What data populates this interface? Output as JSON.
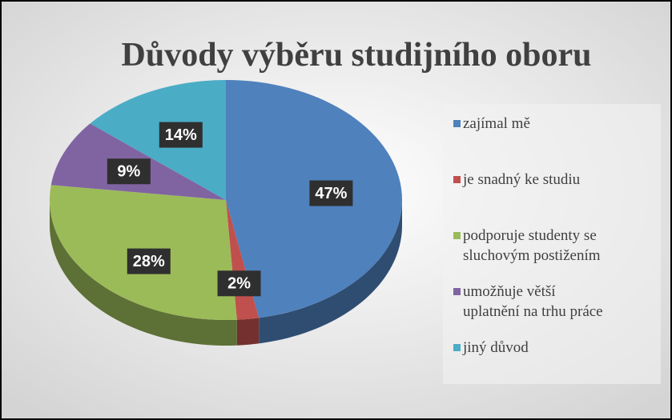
{
  "chart_data": {
    "type": "pie",
    "title": "Důvody výběru studijního oboru",
    "categories": [
      "zajímal mě",
      "je snadný ke studiu",
      "podporuje studenty se sluchovým postižením",
      "umožňuje větší uplatnění na trhu práce",
      "jiný důvod"
    ],
    "values": [
      47,
      2,
      28,
      9,
      14
    ],
    "value_labels": [
      "47%",
      "2%",
      "28%",
      "9%",
      "14%"
    ],
    "colors": [
      "#4f81bd",
      "#c0504d",
      "#9bbb59",
      "#8064a2",
      "#4bacc6"
    ],
    "legend": "right"
  }
}
